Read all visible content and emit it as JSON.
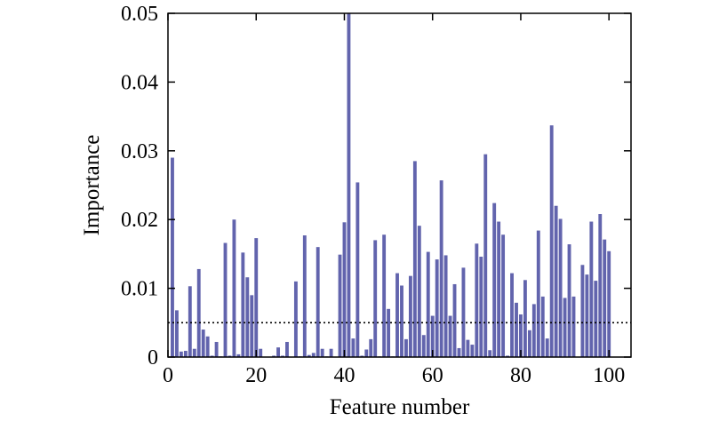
{
  "chart_data": {
    "type": "bar",
    "xlabel": "Feature number",
    "ylabel": "Importance",
    "xlim": [
      0,
      105
    ],
    "ylim": [
      0,
      0.05
    ],
    "xticks": [
      0,
      20,
      40,
      60,
      80,
      100
    ],
    "xtick_labels": [
      "0",
      "20",
      "40",
      "60",
      "80",
      "100"
    ],
    "yticks": [
      0,
      0.01,
      0.02,
      0.03,
      0.04,
      0.05
    ],
    "ytick_labels": [
      "0",
      "0.01",
      "0.02",
      "0.03",
      "0.04",
      "0.05"
    ],
    "threshold": 0.005,
    "bar_color": "#6264ad",
    "x": [
      1,
      2,
      3,
      4,
      5,
      6,
      7,
      8,
      9,
      10,
      11,
      12,
      13,
      14,
      15,
      16,
      17,
      18,
      19,
      20,
      21,
      22,
      23,
      24,
      25,
      26,
      27,
      28,
      29,
      30,
      31,
      32,
      33,
      34,
      35,
      36,
      37,
      38,
      39,
      40,
      41,
      42,
      43,
      44,
      45,
      46,
      47,
      48,
      49,
      50,
      51,
      52,
      53,
      54,
      55,
      56,
      57,
      58,
      59,
      60,
      61,
      62,
      63,
      64,
      65,
      66,
      67,
      68,
      69,
      70,
      71,
      72,
      73,
      74,
      75,
      76,
      77,
      78,
      79,
      80,
      81,
      82,
      83,
      84,
      85,
      86,
      87,
      88,
      89,
      90,
      91,
      92,
      93,
      94,
      95,
      96,
      97,
      98,
      99,
      100
    ],
    "values": [
      0.029,
      0.0068,
      0.0008,
      0.0009,
      0.0103,
      0.0012,
      0.0128,
      0.004,
      0.003,
      0.0002,
      0.0022,
      0.0001,
      0.0166,
      0.0002,
      0.02,
      0.0004,
      0.0152,
      0.0116,
      0.009,
      0.0173,
      0.0012,
      0,
      0,
      0.0002,
      0.0014,
      0.0002,
      0.0022,
      0,
      0.011,
      0.0001,
      0.0177,
      0.0003,
      0.0006,
      0.016,
      0.0012,
      0.0001,
      0.0012,
      0,
      0.0149,
      0.0196,
      0.05,
      0.0027,
      0.0254,
      0.0002,
      0.0011,
      0.0026,
      0.017,
      0.0001,
      0.0178,
      0.007,
      0.0001,
      0.0122,
      0.0104,
      0.0026,
      0.0118,
      0.0285,
      0.0191,
      0.0032,
      0.0153,
      0.006,
      0.0142,
      0.0257,
      0.0148,
      0.006,
      0.0106,
      0.0013,
      0.013,
      0.0025,
      0.0018,
      0.0165,
      0.0146,
      0.0295,
      0.001,
      0.0224,
      0.0197,
      0.0178,
      0.0002,
      0.0122,
      0.0079,
      0.0062,
      0.0112,
      0.0039,
      0.0077,
      0.0184,
      0.0088,
      0.0027,
      0.0337,
      0.022,
      0.0201,
      0.0086,
      0.0164,
      0.0088,
      0,
      0.0134,
      0.012,
      0.0197,
      0.0111,
      0.0208,
      0.0171,
      0.0154
    ]
  }
}
